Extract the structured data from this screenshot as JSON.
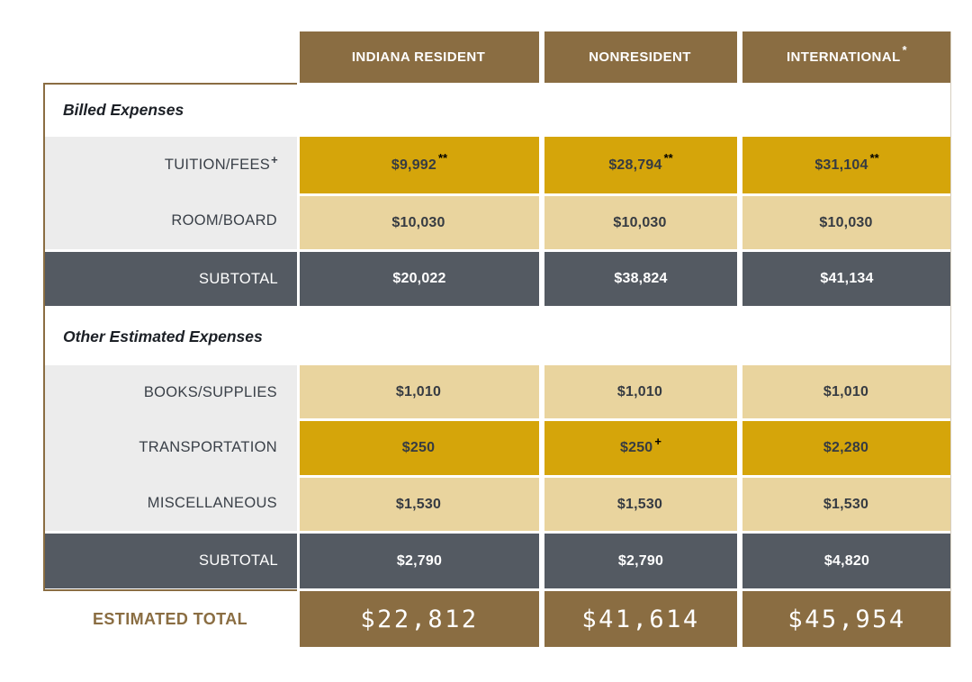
{
  "colors": {
    "brown": "#8a6d42",
    "gold": "#d5a50a",
    "tan": "#e9d49e",
    "label_gray": "#ececec",
    "slate": "#545a62",
    "text_dark": "#363b42",
    "border_brown": "#8a6d42"
  },
  "table": {
    "columns": [
      {
        "text": "INDIANA RESIDENT",
        "sup": ""
      },
      {
        "text": "NONRESIDENT",
        "sup": ""
      },
      {
        "text": "INTERNATIONAL",
        "sup": "*"
      }
    ],
    "sections": [
      {
        "title": "Billed Expenses",
        "rows": [
          {
            "label": {
              "text": "TUITION/FEES",
              "sup": "+"
            },
            "values": [
              {
                "text": "$9,992",
                "sup": "**"
              },
              {
                "text": "$28,794",
                "sup": "**"
              },
              {
                "text": "$31,104",
                "sup": "**"
              }
            ]
          },
          {
            "label": {
              "text": "ROOM/BOARD",
              "sup": ""
            },
            "values": [
              {
                "text": "$10,030",
                "sup": ""
              },
              {
                "text": "$10,030",
                "sup": ""
              },
              {
                "text": "$10,030",
                "sup": ""
              }
            ]
          }
        ],
        "subtotal": {
          "label": "SUBTOTAL",
          "values": [
            "$20,022",
            "$38,824",
            "$41,134"
          ]
        }
      },
      {
        "title": "Other Estimated Expenses",
        "rows": [
          {
            "label": {
              "text": "BOOKS/SUPPLIES",
              "sup": ""
            },
            "values": [
              {
                "text": "$1,010",
                "sup": ""
              },
              {
                "text": "$1,010",
                "sup": ""
              },
              {
                "text": "$1,010",
                "sup": ""
              }
            ]
          },
          {
            "label": {
              "text": "TRANSPORTATION",
              "sup": ""
            },
            "values": [
              {
                "text": "$250",
                "sup": ""
              },
              {
                "text": "$250",
                "sup": "+"
              },
              {
                "text": "$2,280",
                "sup": ""
              }
            ]
          },
          {
            "label": {
              "text": "MISCELLANEOUS",
              "sup": ""
            },
            "values": [
              {
                "text": "$1,530",
                "sup": ""
              },
              {
                "text": "$1,530",
                "sup": ""
              },
              {
                "text": "$1,530",
                "sup": ""
              }
            ]
          }
        ],
        "subtotal": {
          "label": "SUBTOTAL",
          "values": [
            "$2,790",
            "$2,790",
            "$4,820"
          ]
        }
      }
    ],
    "total": {
      "label": "ESTIMATED TOTAL",
      "values": [
        "$22,812",
        "$41,614",
        "$45,954"
      ]
    }
  }
}
